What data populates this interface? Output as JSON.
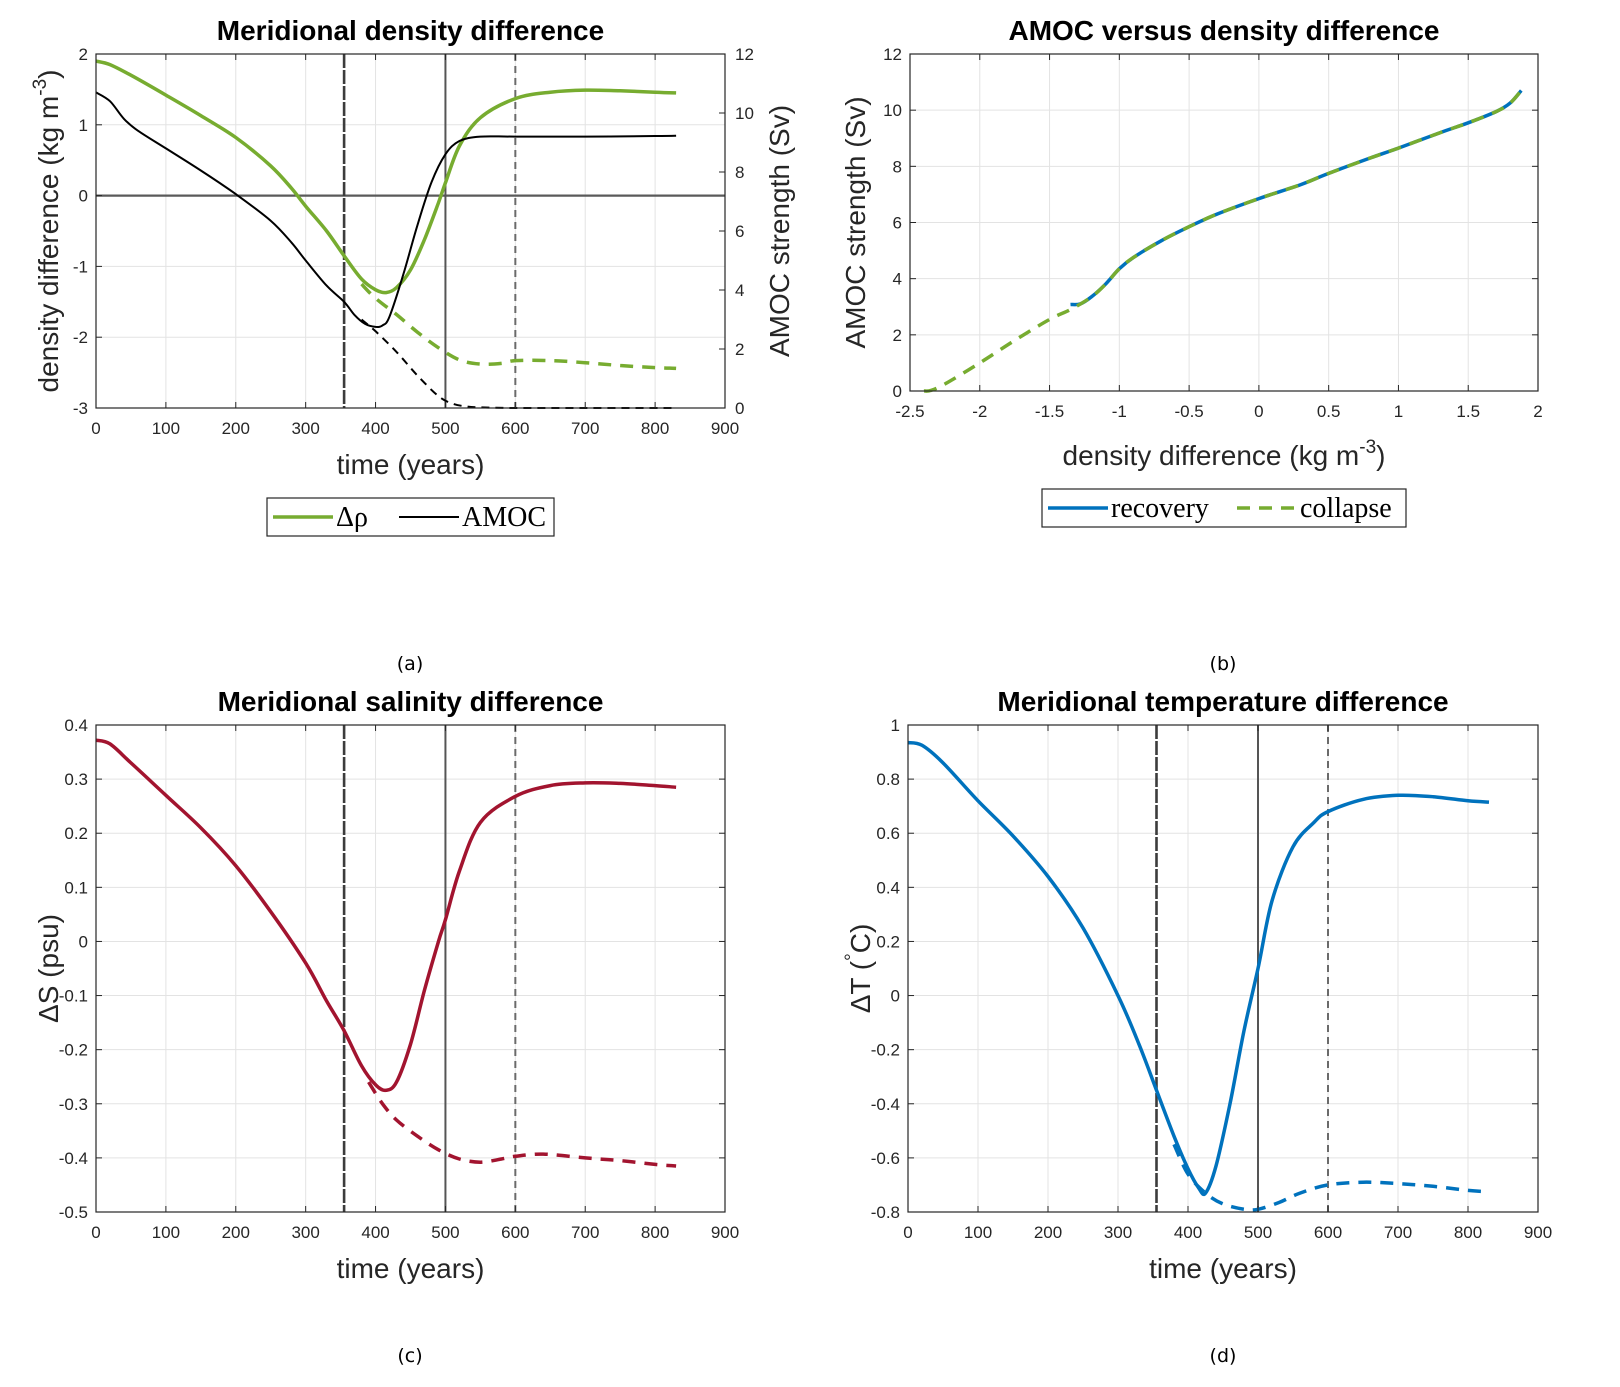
{
  "figure": {
    "subcaptions": [
      "(a)",
      "(b)",
      "(c)",
      "(d)"
    ]
  },
  "chart_data": [
    {
      "id": "a",
      "type": "line",
      "title": "Meridional density difference",
      "xlabel": "time (years)",
      "ylabel": "density difference (kg m",
      "ylabel_sup": "-3",
      "ylabel_close": ")",
      "y2label": "AMOC strength (Sv)",
      "xlim": [
        0,
        900
      ],
      "ylim": [
        -3,
        2
      ],
      "y2lim": [
        0,
        12
      ],
      "xticks": [
        0,
        100,
        200,
        300,
        400,
        500,
        600,
        700,
        800,
        900
      ],
      "yticks": [
        -3,
        -2,
        -1,
        0,
        1,
        2
      ],
      "y2ticks": [
        0,
        2,
        4,
        6,
        8,
        10,
        12
      ],
      "grid": true,
      "hline": 0,
      "vlines": [
        {
          "x": 355,
          "style": "dashed-dark"
        },
        {
          "x": 500,
          "style": "solid"
        },
        {
          "x": 600,
          "style": "dashed"
        }
      ],
      "legend": {
        "placement": "below",
        "entries": [
          "Δρ",
          "AMOC"
        ]
      },
      "series": [
        {
          "name": "Δρ",
          "axis": "left",
          "color": "#77AC30",
          "dash": false,
          "x": [
            0,
            20,
            50,
            100,
            150,
            200,
            250,
            280,
            300,
            330,
            355,
            380,
            400,
            415,
            430,
            450,
            470,
            490,
            500,
            520,
            550,
            600,
            650,
            700,
            750,
            800,
            830
          ],
          "y": [
            1.9,
            1.85,
            1.7,
            1.42,
            1.13,
            0.82,
            0.42,
            0.1,
            -0.15,
            -0.5,
            -0.85,
            -1.18,
            -1.33,
            -1.37,
            -1.3,
            -1.05,
            -0.62,
            -0.1,
            0.18,
            0.7,
            1.1,
            1.37,
            1.46,
            1.49,
            1.48,
            1.46,
            1.45
          ]
        },
        {
          "name": "Δρ collapse",
          "axis": "left",
          "color": "#77AC30",
          "dash": true,
          "x": [
            380,
            400,
            430,
            460,
            490,
            520,
            550,
            580,
            600,
            650,
            700,
            750,
            800,
            830
          ],
          "y": [
            -1.25,
            -1.45,
            -1.68,
            -1.93,
            -2.15,
            -2.32,
            -2.38,
            -2.37,
            -2.33,
            -2.33,
            -2.36,
            -2.4,
            -2.43,
            -2.44
          ]
        },
        {
          "name": "AMOC",
          "axis": "right",
          "color": "#000000",
          "dash": false,
          "x": [
            0,
            20,
            40,
            60,
            100,
            150,
            200,
            250,
            280,
            300,
            330,
            355,
            370,
            385,
            400,
            410,
            420,
            440,
            460,
            480,
            500,
            520,
            550,
            600,
            700,
            800,
            830
          ],
          "y": [
            10.7,
            10.4,
            9.8,
            9.4,
            8.8,
            8.05,
            7.25,
            6.35,
            5.6,
            5.0,
            4.15,
            3.6,
            3.15,
            2.85,
            2.75,
            2.8,
            3.1,
            4.55,
            6.2,
            7.65,
            8.6,
            9.05,
            9.2,
            9.2,
            9.2,
            9.22,
            9.23
          ]
        },
        {
          "name": "AMOC collapse",
          "axis": "right",
          "color": "#000000",
          "dash": true,
          "x": [
            380,
            400,
            430,
            460,
            490,
            510,
            530,
            550,
            600,
            700,
            800,
            830
          ],
          "y": [
            3.0,
            2.6,
            1.9,
            1.1,
            0.4,
            0.15,
            0.05,
            0.02,
            0.0,
            0.0,
            0.0,
            0.0
          ]
        }
      ]
    },
    {
      "id": "b",
      "type": "line",
      "title": "AMOC versus density difference",
      "xlabel": "density difference (kg m",
      "xlabel_sup": "-3",
      "xlabel_close": ")",
      "ylabel": "AMOC strength (Sv)",
      "xlim": [
        -2.5,
        2
      ],
      "ylim": [
        0,
        12
      ],
      "xticks": [
        -2.5,
        -2,
        -1.5,
        -1,
        -0.5,
        0,
        0.5,
        1,
        1.5,
        2
      ],
      "yticks": [
        0,
        2,
        4,
        6,
        8,
        10,
        12
      ],
      "grid": true,
      "legend": {
        "placement": "below",
        "entries": [
          "recovery",
          "collapse"
        ]
      },
      "series": [
        {
          "name": "recovery",
          "color": "#0072BD",
          "dash": false,
          "x": [
            -1.35,
            -1.28,
            -1.2,
            -1.1,
            -1.0,
            -0.9,
            -0.7,
            -0.5,
            -0.3,
            0,
            0.3,
            0.5,
            0.8,
            1.0,
            1.3,
            1.5,
            1.7,
            1.8,
            1.88
          ],
          "y": [
            3.08,
            3.1,
            3.35,
            3.8,
            4.35,
            4.75,
            5.35,
            5.85,
            6.3,
            6.85,
            7.35,
            7.75,
            8.3,
            8.65,
            9.2,
            9.55,
            9.95,
            10.25,
            10.7
          ]
        },
        {
          "name": "collapse",
          "color": "#77AC30",
          "dash": true,
          "x": [
            -2.4,
            -2.35,
            -2.25,
            -2.0,
            -1.75,
            -1.5,
            -1.35,
            -1.2,
            -1.1,
            -1.0,
            -0.9,
            -0.7,
            -0.5,
            -0.3,
            0,
            0.3,
            0.5,
            0.8,
            1.0,
            1.3,
            1.5,
            1.7,
            1.8,
            1.88
          ],
          "y": [
            0.0,
            0.02,
            0.25,
            1.0,
            1.8,
            2.55,
            2.9,
            3.35,
            3.8,
            4.35,
            4.75,
            5.35,
            5.85,
            6.3,
            6.85,
            7.35,
            7.75,
            8.3,
            8.65,
            9.2,
            9.55,
            9.95,
            10.25,
            10.7
          ]
        }
      ]
    },
    {
      "id": "c",
      "type": "line",
      "title": "Meridional salinity difference",
      "xlabel": "time (years)",
      "ylabel": "ΔS (psu)",
      "xlim": [
        0,
        900
      ],
      "ylim": [
        -0.5,
        0.4
      ],
      "xticks": [
        0,
        100,
        200,
        300,
        400,
        500,
        600,
        700,
        800,
        900
      ],
      "yticks": [
        -0.5,
        -0.4,
        -0.3,
        -0.2,
        -0.1,
        0,
        0.1,
        0.2,
        0.3,
        0.4
      ],
      "grid": true,
      "vlines": [
        {
          "x": 355,
          "style": "dashed-dark"
        },
        {
          "x": 500,
          "style": "solid"
        },
        {
          "x": 600,
          "style": "dashed"
        }
      ],
      "series": [
        {
          "name": "ΔS",
          "color": "#A2142F",
          "dash": false,
          "x": [
            0,
            20,
            50,
            100,
            150,
            200,
            250,
            300,
            330,
            355,
            380,
            400,
            415,
            430,
            450,
            470,
            490,
            500,
            520,
            550,
            600,
            650,
            700,
            750,
            800,
            830
          ],
          "y": [
            0.372,
            0.365,
            0.33,
            0.27,
            0.21,
            0.14,
            0.055,
            -0.04,
            -0.11,
            -0.165,
            -0.23,
            -0.265,
            -0.275,
            -0.26,
            -0.19,
            -0.09,
            0.0,
            0.04,
            0.13,
            0.22,
            0.268,
            0.288,
            0.293,
            0.292,
            0.288,
            0.285
          ]
        },
        {
          "name": "ΔS collapse",
          "color": "#A2142F",
          "dash": true,
          "x": [
            390,
            410,
            430,
            460,
            490,
            520,
            550,
            580,
            600,
            640,
            700,
            750,
            800,
            830
          ],
          "y": [
            -0.26,
            -0.3,
            -0.33,
            -0.36,
            -0.385,
            -0.402,
            -0.408,
            -0.402,
            -0.397,
            -0.393,
            -0.4,
            -0.405,
            -0.412,
            -0.415
          ]
        }
      ]
    },
    {
      "id": "d",
      "type": "line",
      "title": "Meridional temperature difference",
      "xlabel": "time (years)",
      "ylabel": "ΔT (",
      "ylabel_sup": "°",
      "ylabel_close": "C)",
      "xlim": [
        0,
        900
      ],
      "ylim": [
        -0.8,
        1
      ],
      "xticks": [
        0,
        100,
        200,
        300,
        400,
        500,
        600,
        700,
        800,
        900
      ],
      "yticks": [
        -0.8,
        -0.6,
        -0.4,
        -0.2,
        0,
        0.2,
        0.4,
        0.6,
        0.8,
        1
      ],
      "grid": true,
      "vlines": [
        {
          "x": 355,
          "style": "dashed-dark"
        },
        {
          "x": 500,
          "style": "solid"
        },
        {
          "x": 600,
          "style": "dashed"
        }
      ],
      "series": [
        {
          "name": "ΔT",
          "color": "#0072BD",
          "dash": false,
          "x": [
            0,
            20,
            50,
            100,
            150,
            200,
            250,
            300,
            330,
            355,
            380,
            400,
            415,
            425,
            440,
            460,
            480,
            500,
            520,
            550,
            580,
            600,
            650,
            700,
            750,
            800,
            830
          ],
          "y": [
            0.935,
            0.925,
            0.86,
            0.72,
            0.59,
            0.44,
            0.25,
            0.0,
            -0.18,
            -0.35,
            -0.52,
            -0.64,
            -0.71,
            -0.73,
            -0.63,
            -0.4,
            -0.13,
            0.1,
            0.35,
            0.55,
            0.64,
            0.68,
            0.725,
            0.74,
            0.735,
            0.72,
            0.715
          ]
        },
        {
          "name": "ΔT collapse",
          "color": "#0072BD",
          "dash": true,
          "x": [
            380,
            400,
            425,
            450,
            480,
            500,
            530,
            560,
            600,
            650,
            700,
            750,
            800,
            830
          ],
          "y": [
            -0.55,
            -0.66,
            -0.73,
            -0.77,
            -0.79,
            -0.79,
            -0.765,
            -0.73,
            -0.7,
            -0.69,
            -0.695,
            -0.705,
            -0.72,
            -0.725
          ]
        }
      ]
    }
  ]
}
